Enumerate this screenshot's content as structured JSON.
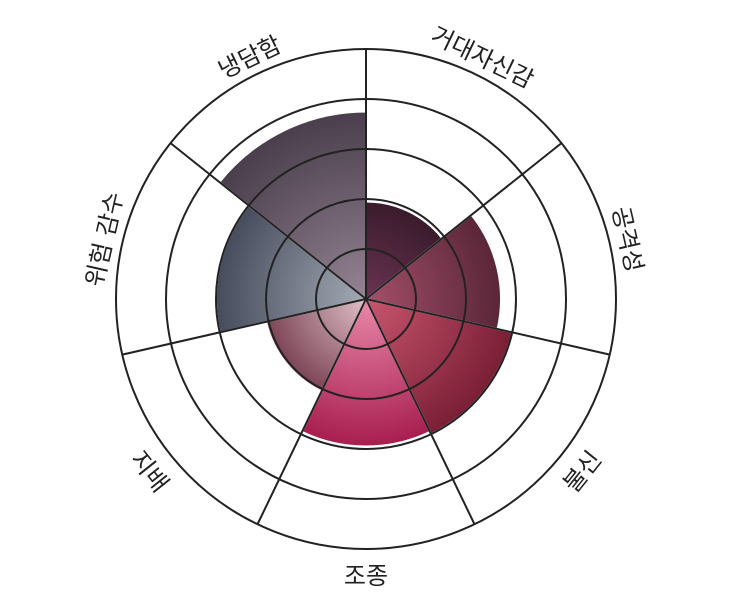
{
  "chart_data": {
    "type": "polar-area",
    "categories": [
      "거대자신감",
      "공격성",
      "불신",
      "조종",
      "지배",
      "위험 감수",
      "냉담함"
    ],
    "values": [
      1.95,
      2.7,
      3.0,
      2.95,
      2.05,
      3.0,
      3.75
    ],
    "rlim": [
      0,
      5
    ],
    "ring_step": 1,
    "grid": true,
    "start": "top",
    "direction": "clockwise",
    "colors": [
      {
        "inner": "#6a3452",
        "outer": "#3a1b2c"
      },
      {
        "inner": "#a4506a",
        "outer": "#5a2638"
      },
      {
        "inner": "#c9566e",
        "outer": "#7a1f36"
      },
      {
        "inner": "#e889aa",
        "outer": "#a81e4e"
      },
      {
        "inner": "#e0c0c8",
        "outer": "#7c4456"
      },
      {
        "inner": "#a4aab4",
        "outer": "#464c5c"
      },
      {
        "inner": "#958494",
        "outer": "#4a3e4c"
      }
    ]
  }
}
